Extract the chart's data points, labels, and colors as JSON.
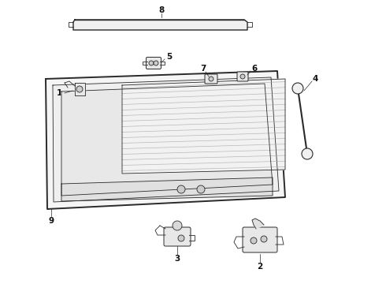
{
  "bg_color": "#ffffff",
  "line_color": "#2a2a2a",
  "label_color": "#111111",
  "stripe_color": "#aaaaaa",
  "lw_main": 1.0,
  "lw_thin": 0.6
}
